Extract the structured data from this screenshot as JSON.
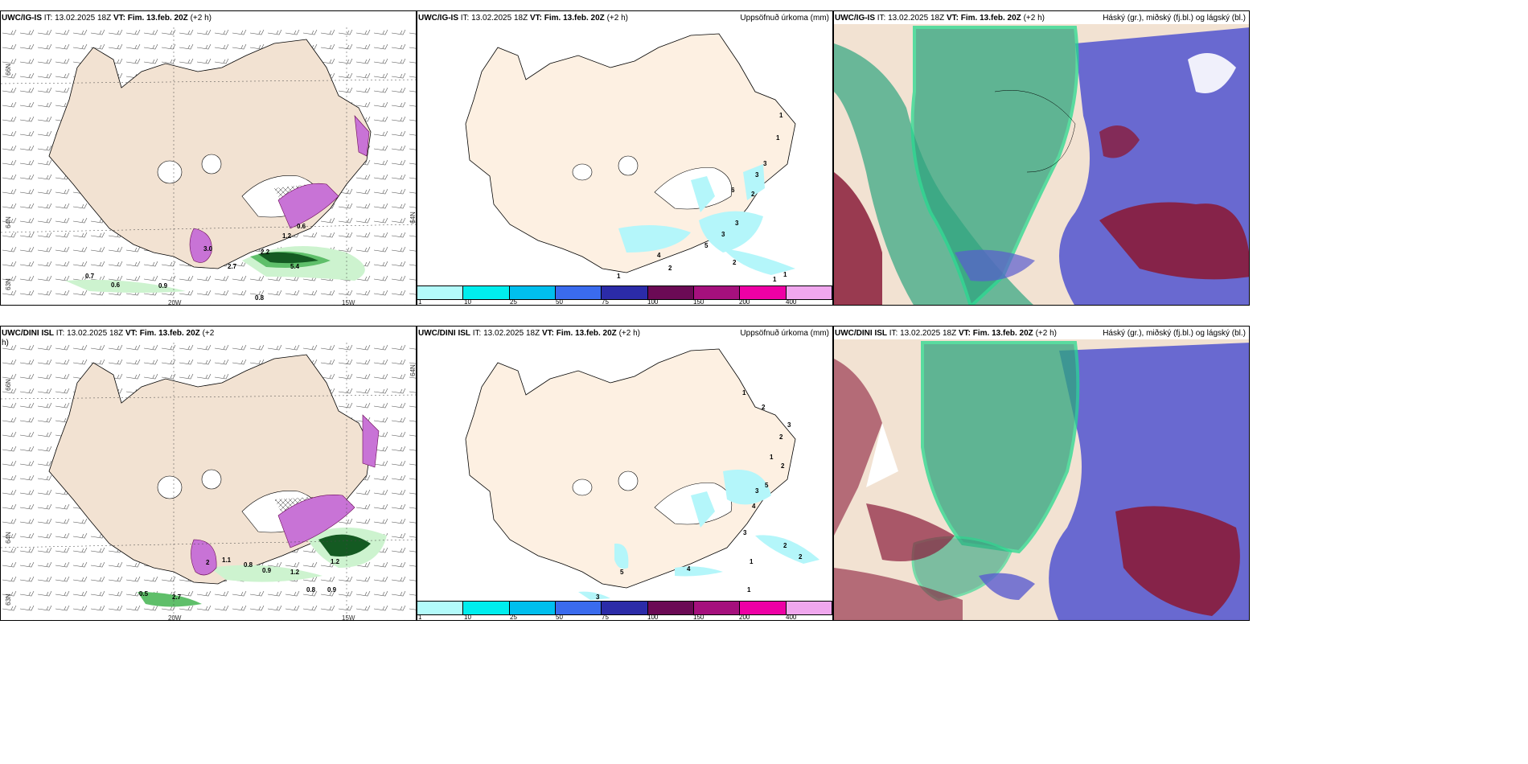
{
  "panels": [
    {
      "id": "p1",
      "model": "UWC/IG-IS",
      "it": "IT: 13.02.2025 18Z",
      "vt_label": "VT:",
      "vt": "Fim. 13.feb. 20Z",
      "lead": "(+2 h)",
      "right": "",
      "kind": "wind",
      "labels": {
        "lat66": "66N",
        "lat64": "64N",
        "lat64r": "64N",
        "lat63": "63N",
        "lon20": "20W",
        "lon15": "15W"
      },
      "values": [
        "3.0",
        "2.7",
        "0.7",
        "0.6",
        "0.9",
        "0.8",
        "0.6",
        "1.2",
        "5.4",
        "2.2"
      ]
    },
    {
      "id": "p2",
      "model": "UWC/IG-IS",
      "it": "IT: 13.02.2025 18Z",
      "vt_label": "VT:",
      "vt": "Fim. 13.feb. 20Z",
      "lead": "(+2 h)",
      "right": "Uppsöfnuð úrkoma (mm)",
      "kind": "precip",
      "values": [
        "1",
        "1",
        "3",
        "3",
        "6",
        "2",
        "3",
        "3",
        "5",
        "2",
        "1",
        "4",
        "2",
        "1",
        "1"
      ]
    },
    {
      "id": "p3",
      "model": "UWC/IG-IS",
      "it": "IT: 13.02.2025 18Z",
      "vt_label": "VT:",
      "vt": "Fim. 13.feb. 20Z",
      "lead": "(+2 h)",
      "right": "Háský (gr.), miðský (fj.bl.) og lágský (bl.)",
      "kind": "cloud"
    },
    {
      "id": "p4",
      "model": "UWC/DINI ISL",
      "it": "IT: 13.02.2025 18Z",
      "vt_label": "VT:",
      "vt": "Fim. 13.feb. 20Z",
      "lead": "(+2",
      "lead2": "h)",
      "right": "",
      "kind": "wind",
      "labels": {
        "lat66": "66N",
        "lat64": "64N",
        "lat64r": "64N",
        "lat63": "63N",
        "lon20": "20W",
        "lon15": "15W"
      },
      "values": [
        "2",
        "1.1",
        "0.8",
        "0.9",
        "1.2",
        "0.5",
        "2.7",
        "0.8",
        "0.9",
        "1.2"
      ]
    },
    {
      "id": "p5",
      "model": "UWC/DINI ISL",
      "it": "IT: 13.02.2025 18Z",
      "vt_label": "VT:",
      "vt": "Fim. 13.feb. 20Z",
      "lead": "(+2 h)",
      "right": "Uppsöfnuð úrkoma (mm)",
      "kind": "precip",
      "values": [
        "1",
        "2",
        "3",
        "2",
        "1",
        "2",
        "5",
        "4",
        "3",
        "3",
        "2",
        "2",
        "1",
        "4",
        "1",
        "5",
        "3"
      ]
    },
    {
      "id": "p6",
      "model": "UWC/DINI ISL",
      "it": "IT: 13.02.2025 18Z",
      "vt_label": "VT:",
      "vt": "Fim. 13.feb. 20Z",
      "lead": "(+2 h)",
      "right": "Háský (gr.), miðský (fj.bl.) og lágský (bl.)",
      "kind": "cloud"
    }
  ],
  "colorbar": {
    "colors": [
      "#b3fbfb",
      "#00eeee",
      "#00bfee",
      "#3a6bee",
      "#2b2ba8",
      "#6b0a55",
      "#a5107d",
      "#ee00a5",
      "#f0a7ee"
    ],
    "ticks": [
      "1",
      "10",
      "25",
      "50",
      "75",
      "100",
      "150",
      "200",
      "400"
    ]
  },
  "colors": {
    "land": "#f2e2d2",
    "precip_land": "#fdf0e2",
    "shower_light": "#cdf3cf",
    "shower_mid": "#5fbf6a",
    "shower_dark": "#145a22",
    "snow": "#c873d6",
    "precip": "#b4f6fa",
    "high_cloud": "#2fa57f",
    "mid_cloud": "#5a5ccf",
    "low_cloud": "#8a1c3a"
  }
}
